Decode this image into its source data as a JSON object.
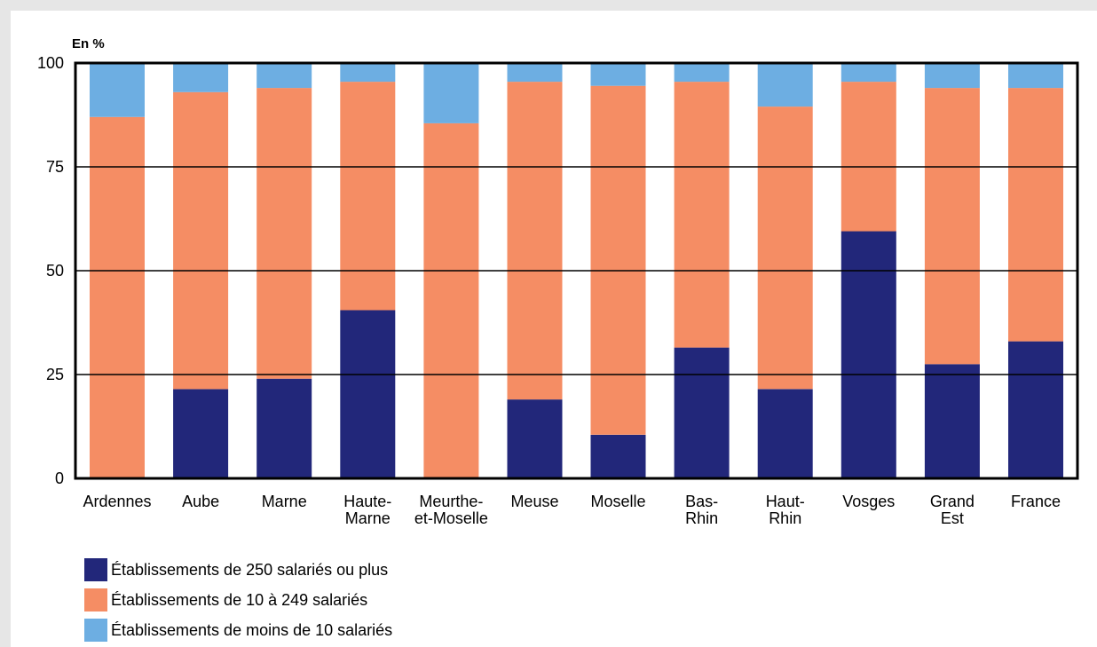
{
  "chart_data": {
    "type": "bar",
    "stacked": true,
    "unit_label": "En %",
    "ylim": [
      0,
      100
    ],
    "yticks": [
      0,
      25,
      50,
      75,
      100
    ],
    "grid": true,
    "legend_position": "bottom-left",
    "categories": [
      [
        "Ardennes"
      ],
      [
        "Aube"
      ],
      [
        "Marne"
      ],
      [
        "Haute-",
        "Marne"
      ],
      [
        "Meurthe-",
        "et-Moselle"
      ],
      [
        "Meuse"
      ],
      [
        "Moselle"
      ],
      [
        "Bas-",
        "Rhin"
      ],
      [
        "Haut-",
        "Rhin"
      ],
      [
        "Vosges"
      ],
      [
        "Grand",
        "Est"
      ],
      [
        "France"
      ]
    ],
    "series": [
      {
        "name": "Établissements de 250 salariés ou plus",
        "color": "#22277a",
        "values": [
          0,
          21.5,
          24,
          40.5,
          0,
          19,
          10.5,
          31.5,
          21.5,
          59.5,
          27.5,
          33
        ]
      },
      {
        "name": "Établissements de 10 à 249 salariés",
        "color": "#f58d64",
        "values": [
          87,
          71.5,
          70,
          55,
          85.5,
          76.5,
          84,
          64,
          68,
          36,
          66.5,
          61
        ]
      },
      {
        "name": "Établissements de moins de 10 salariés",
        "color": "#6daee2",
        "values": [
          13,
          7,
          6,
          4.5,
          14.5,
          4.5,
          5.5,
          4.5,
          10.5,
          4.5,
          6,
          6
        ]
      }
    ]
  }
}
